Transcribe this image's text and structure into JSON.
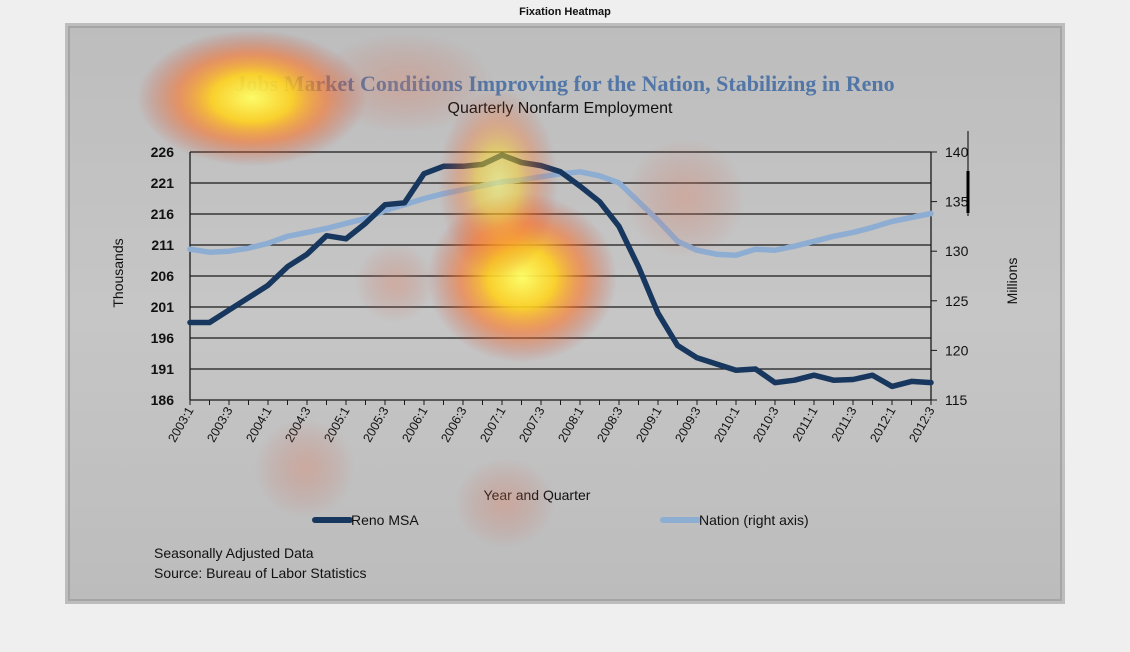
{
  "window": {
    "title": "Fixation Heatmap"
  },
  "chart_data": {
    "type": "line",
    "title": "Jobs Market Conditions Improving for the Nation, Stabilizing in Reno",
    "subtitle": "Quarterly Nonfarm Employment",
    "xlabel": "Year and Quarter",
    "ylabel": "Thousands",
    "y2label": "Millions",
    "ylim": [
      186,
      226
    ],
    "y2lim": [
      115,
      140
    ],
    "yticks": [
      186,
      191,
      196,
      201,
      206,
      211,
      216,
      221,
      226
    ],
    "y2ticks": [
      115,
      120,
      125,
      130,
      135,
      140
    ],
    "grid": true,
    "legend_position": "bottom",
    "categories": [
      "2003:1",
      "2003:2",
      "2003:3",
      "2003:4",
      "2004:1",
      "2004:2",
      "2004:3",
      "2004:4",
      "2005:1",
      "2005:2",
      "2005:3",
      "2005:4",
      "2006:1",
      "2006:2",
      "2006:3",
      "2006:4",
      "2007:1",
      "2007:2",
      "2007:3",
      "2007:4",
      "2008:1",
      "2008:2",
      "2008:3",
      "2008:4",
      "2009:1",
      "2009:2",
      "2009:3",
      "2009:4",
      "2010:1",
      "2010:2",
      "2010:3",
      "2010:4",
      "2011:1",
      "2011:2",
      "2011:3",
      "2011:4",
      "2012:1",
      "2012:2",
      "2012:3"
    ],
    "tick_labels": [
      "2003:1",
      "2003:3",
      "2004:1",
      "2004:3",
      "2005:1",
      "2005:3",
      "2006:1",
      "2006:3",
      "2007:1",
      "2007:3",
      "2008:1",
      "2008:3",
      "2009:1",
      "2009:3",
      "2010:1",
      "2010:3",
      "2011:1",
      "2011:3",
      "2012:1",
      "2012:3"
    ],
    "series": [
      {
        "name": "Reno MSA",
        "axis": "left",
        "color": "#17375e",
        "values": [
          198.5,
          198.5,
          200.5,
          202.5,
          204.5,
          207.5,
          209.5,
          212.5,
          212.0,
          214.5,
          217.5,
          217.8,
          222.5,
          223.7,
          223.7,
          224.0,
          225.5,
          224.3,
          223.8,
          222.8,
          220.5,
          218.0,
          214.0,
          207.5,
          200.0,
          194.8,
          192.8,
          191.8,
          190.8,
          191.0,
          188.8,
          189.2,
          190.0,
          189.2,
          189.3,
          190.0,
          188.2,
          189.0,
          188.8
        ]
      },
      {
        "name": "Nation (right axis)",
        "axis": "right",
        "color": "#8eadd3",
        "values": [
          130.2,
          129.9,
          130.0,
          130.3,
          130.8,
          131.5,
          131.9,
          132.3,
          132.8,
          133.3,
          134.1,
          134.7,
          135.3,
          135.8,
          136.2,
          136.6,
          137.0,
          137.2,
          137.5,
          137.8,
          138.0,
          137.6,
          136.9,
          135.0,
          133.1,
          131.0,
          130.1,
          129.7,
          129.6,
          130.2,
          130.1,
          130.5,
          131.0,
          131.5,
          131.9,
          132.4,
          133.0,
          133.4,
          133.8
        ]
      }
    ]
  },
  "notes": {
    "line1": "Seasonally Adjusted Data",
    "line2": "Source: Bureau of Labor  Statistics"
  },
  "overlay": {
    "type": "fixation-heatmap",
    "colors": {
      "low": "#c83c28",
      "mid": "#ffb400",
      "high": "#ffff64"
    }
  }
}
